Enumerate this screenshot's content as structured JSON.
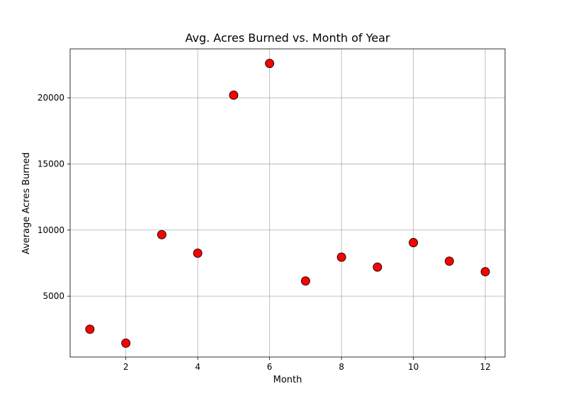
{
  "chart_data": {
    "type": "scatter",
    "title": "Avg. Acres Burned vs. Month of Year",
    "xlabel": "Month",
    "ylabel": "Average Acres Burned",
    "xlim": [
      0.45,
      12.55
    ],
    "ylim": [
      400,
      23700
    ],
    "xticks": [
      2,
      4,
      6,
      8,
      10,
      12
    ],
    "yticks": [
      5000,
      10000,
      15000,
      20000
    ],
    "grid": true,
    "marker_color": "#ff0000",
    "marker_edge_color": "#000000",
    "points": [
      {
        "x": 1,
        "y": 2500
      },
      {
        "x": 2,
        "y": 1450
      },
      {
        "x": 3,
        "y": 9650
      },
      {
        "x": 4,
        "y": 8250
      },
      {
        "x": 5,
        "y": 20200
      },
      {
        "x": 6,
        "y": 22600
      },
      {
        "x": 7,
        "y": 6150
      },
      {
        "x": 8,
        "y": 7950
      },
      {
        "x": 9,
        "y": 7200
      },
      {
        "x": 10,
        "y": 9050
      },
      {
        "x": 11,
        "y": 7650
      },
      {
        "x": 12,
        "y": 6850
      }
    ]
  }
}
